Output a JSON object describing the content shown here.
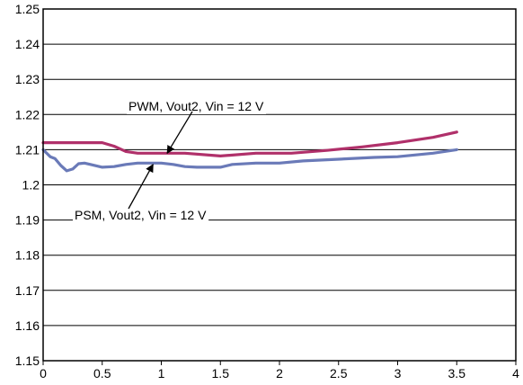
{
  "colors": {
    "pwm_series": "#b0306a",
    "psm_series": "#6a7ab8",
    "gridline": "#000000",
    "plot_border": "#000000"
  },
  "chart_data": {
    "type": "line",
    "title": "",
    "xlabel": "",
    "ylabel": "",
    "xlim": [
      0,
      4
    ],
    "ylim": [
      1.15,
      1.25
    ],
    "grid": "horizontal",
    "x_ticks": [
      "0",
      "0.5",
      "1",
      "1.5",
      "2",
      "2.5",
      "3",
      "3.5",
      "4"
    ],
    "y_ticks": [
      "1.15",
      "1.16",
      "1.17",
      "1.18",
      "1.19",
      "1.2",
      "1.21",
      "1.22",
      "1.23",
      "1.24",
      "1.25"
    ],
    "series": [
      {
        "name": "PWM, Vout2, Vin = 12 V",
        "color": "#b0306a",
        "x": [
          0,
          0.1,
          0.3,
          0.5,
          0.6,
          0.7,
          0.8,
          1.0,
          1.2,
          1.5,
          1.8,
          2.1,
          2.4,
          2.7,
          3.0,
          3.3,
          3.5
        ],
        "y": [
          1.212,
          1.212,
          1.212,
          1.212,
          1.211,
          1.2095,
          1.209,
          1.209,
          1.209,
          1.2082,
          1.209,
          1.209,
          1.2098,
          1.2108,
          1.212,
          1.2135,
          1.215
        ]
      },
      {
        "name": "PSM, Vout2, Vin = 12 V",
        "color": "#6a7ab8",
        "x": [
          0,
          0.03,
          0.06,
          0.1,
          0.15,
          0.2,
          0.25,
          0.3,
          0.35,
          0.4,
          0.5,
          0.6,
          0.7,
          0.8,
          1.0,
          1.1,
          1.2,
          1.3,
          1.5,
          1.6,
          1.8,
          2.0,
          2.2,
          2.5,
          2.8,
          3.0,
          3.3,
          3.5
        ],
        "y": [
          1.21,
          1.209,
          1.208,
          1.2075,
          1.2055,
          1.204,
          1.2045,
          1.206,
          1.2062,
          1.2058,
          1.205,
          1.2052,
          1.2058,
          1.2062,
          1.2062,
          1.2058,
          1.2052,
          1.205,
          1.205,
          1.2058,
          1.2062,
          1.2062,
          1.2068,
          1.2073,
          1.2078,
          1.208,
          1.209,
          1.21
        ]
      }
    ],
    "annotations": [
      {
        "text": "PWM, Vout2, Vin = 12 V",
        "points_to_x": 1.05,
        "points_to_y": 1.209
      },
      {
        "text": "PSM, Vout2, Vin = 12 V",
        "points_to_x": 0.93,
        "points_to_y": 1.2058
      }
    ]
  }
}
